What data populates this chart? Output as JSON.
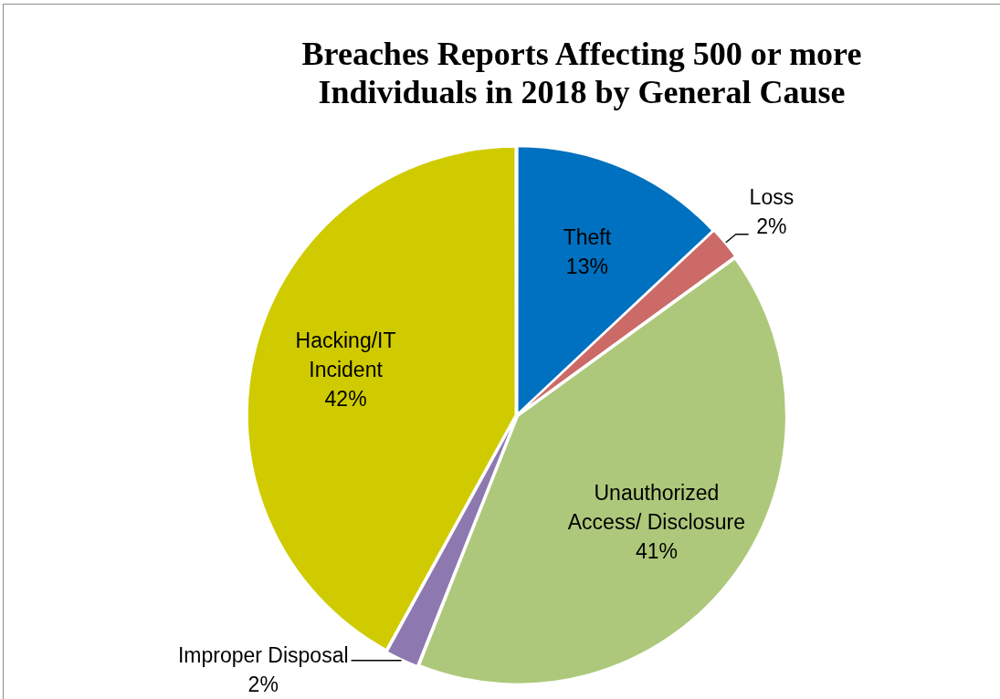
{
  "chart_data": {
    "type": "pie",
    "title": "Breaches Reports Affecting 500 or more Individuals in 2018 by General Cause",
    "categories": [
      "Theft",
      "Loss",
      "Unauthorized Access/ Disclosure",
      "Improper Disposal",
      "Hacking/IT Incident"
    ],
    "values": [
      13,
      2,
      41,
      2,
      42
    ],
    "colors": [
      "#0070c0",
      "#cb6a67",
      "#adc87a",
      "#8e78b0",
      "#d0cb00"
    ],
    "value_labels": [
      "13%",
      "2%",
      "41%",
      "2%",
      "42%"
    ]
  }
}
